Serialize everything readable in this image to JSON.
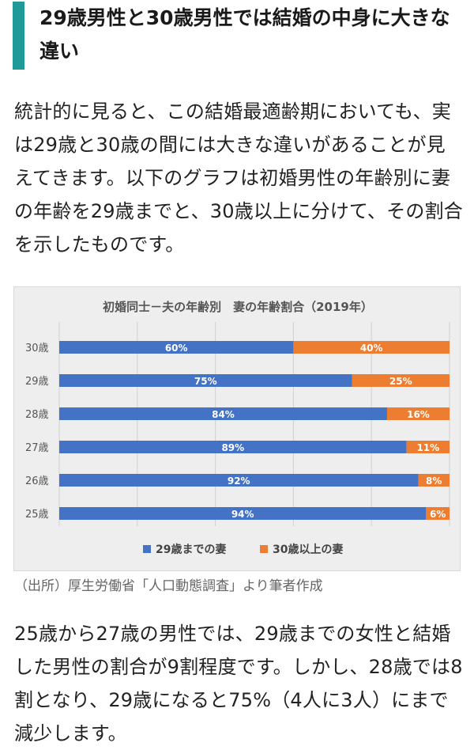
{
  "heading": {
    "title": "29歳男性と30歳男性では結婚の中身に大きな違い"
  },
  "paragraph1": "統計的に見ると、この結婚最適齢期においても、実は29歳と30歳の間には大きな違いがあることが見えてきます。以下のグラフは初婚男性の年齢別に妻の年齢を29歳までと、30歳以上に分けて、その割合を示したものです。",
  "chart_data": {
    "type": "bar",
    "orientation": "horizontal",
    "stacked": true,
    "title": "初婚同士－夫の年齢別　妻の年齢割合（2019年）",
    "categories": [
      "30歳",
      "29歳",
      "28歳",
      "27歳",
      "26歳",
      "25歳"
    ],
    "series": [
      {
        "name": "29歳までの妻",
        "color": "#4472c4",
        "values": [
          60,
          75,
          84,
          89,
          92,
          94
        ],
        "labels": [
          "60%",
          "75%",
          "84%",
          "89%",
          "92%",
          "94%"
        ]
      },
      {
        "name": "30歳以上の妻",
        "color": "#ed7d31",
        "values": [
          40,
          25,
          16,
          11,
          8,
          6
        ],
        "labels": [
          "40%",
          "25%",
          "16%",
          "11%",
          "8%",
          "6%"
        ]
      }
    ],
    "xlim": [
      0,
      100
    ],
    "grid": true,
    "legend": "bottom"
  },
  "source": "（出所）厚生労働省「人口動態調査」より筆者作成",
  "paragraph2": "25歳から27歳の男性では、29歳までの女性と結婚した男性の割合が9割程度です。しかし、28歳では8割となり、29歳になると75%（4人に3人）にまで減少します。"
}
